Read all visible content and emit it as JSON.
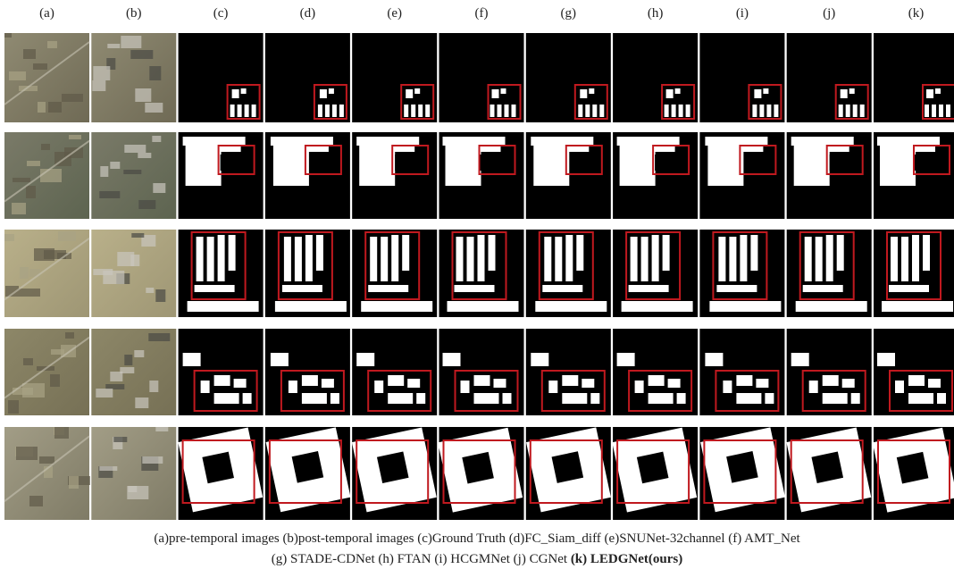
{
  "figure": {
    "column_labels": [
      "(a)",
      "(b)",
      "(c)",
      "(d)",
      "(e)",
      "(f)",
      "(g)",
      "(h)",
      "(i)",
      "(j)",
      "(k)"
    ],
    "caption": {
      "line1": "(a)pre-temporal images (b)post-temporal images (c)Ground Truth (d)FC_Siam_diff (e)SNUNet-32channel (f) AMT_Net",
      "line2": "(g) STADE-CDNet (h) FTAN (i) HCGMNet (j) CGNet ",
      "line2_bold": "(k) LEDGNet(ours)"
    }
  }
}
